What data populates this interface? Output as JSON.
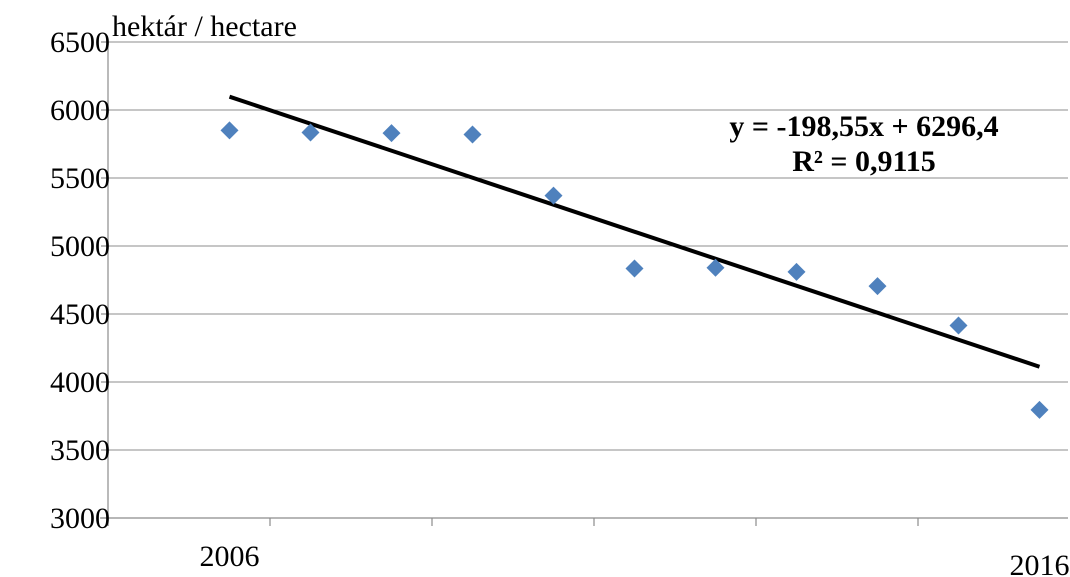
{
  "chart_data": {
    "type": "scatter",
    "title": "",
    "ylabel": "hektár / hectare",
    "xlabel": "",
    "ylim": [
      3000,
      6500
    ],
    "yticks": [
      3000,
      3500,
      4000,
      4500,
      5000,
      5500,
      6000,
      6500
    ],
    "x_tick_labels": [
      {
        "x": 2006,
        "label": "2006"
      },
      {
        "x": 2016,
        "label": "2016"
      }
    ],
    "grid": true,
    "marker": "diamond",
    "marker_color": "#4f81bd",
    "series": [
      {
        "x": [
          2006,
          2007,
          2008,
          2009,
          2010,
          2011,
          2012,
          2013,
          2014,
          2015,
          2016
        ],
        "values": [
          5850,
          5835,
          5830,
          5820,
          5370,
          4835,
          4840,
          4810,
          4705,
          4415,
          3795
        ]
      }
    ],
    "trendline": {
      "type": "linear",
      "slope": -198.55,
      "intercept": 6296.4,
      "color": "#000000",
      "equation": "y = -198,55x + 6296,4",
      "r2": "R² = 0,9115"
    }
  }
}
